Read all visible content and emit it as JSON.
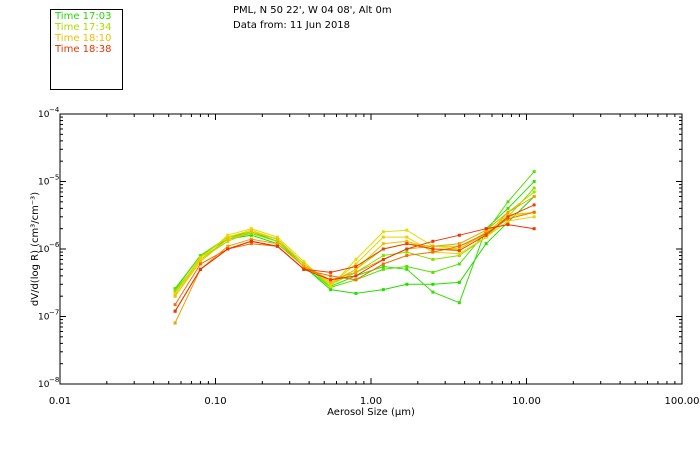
{
  "header": {
    "location": "PML, N 50 22', W 04 08', Alt 0m",
    "date": "Data from: 11 Jun 2018"
  },
  "legend": [
    {
      "label": "Time 17:03",
      "color": "#22dd00"
    },
    {
      "label": "Time 17:34",
      "color": "#aadd00"
    },
    {
      "label": "Time 18:10",
      "color": "#f0c000"
    },
    {
      "label": "Time 18:38",
      "color": "#ee3300"
    }
  ],
  "chart_data": {
    "type": "line",
    "title": "",
    "xlabel": "Aerosol Size (µm)",
    "ylabel": "dV/d(log R) (cm³/cm⁻³)",
    "xscale": "log",
    "yscale": "log",
    "xlim": [
      0.01,
      100
    ],
    "ylim": [
      1e-08,
      0.0001
    ],
    "x_ticks": [
      {
        "v": 0.01,
        "label": "0.01"
      },
      {
        "v": 0.1,
        "label": "0.10"
      },
      {
        "v": 1,
        "label": "1.00"
      },
      {
        "v": 10,
        "label": "10.00"
      },
      {
        "v": 100,
        "label": "100.00"
      }
    ],
    "y_ticks": [
      {
        "v": 1e-08,
        "mant": "10",
        "exp": "−8"
      },
      {
        "v": 1e-07,
        "mant": "10",
        "exp": "−7"
      },
      {
        "v": 1e-06,
        "mant": "10",
        "exp": "−6"
      },
      {
        "v": 1e-05,
        "mant": "10",
        "exp": "−5"
      },
      {
        "v": 0.0001,
        "mant": "10",
        "exp": "−4"
      }
    ],
    "x": [
      0.055,
      0.08,
      0.12,
      0.17,
      0.25,
      0.37,
      0.55,
      0.8,
      1.2,
      1.7,
      2.5,
      3.7,
      5.5,
      7.6,
      11.2
    ],
    "series": [
      {
        "name": "s1",
        "color": "#22dd00",
        "values": [
          2.5e-07,
          8e-07,
          1.4e-06,
          1.6e-06,
          1.2e-06,
          5.5e-07,
          2.5e-07,
          2.2e-07,
          2.5e-07,
          3e-07,
          3e-07,
          3.2e-07,
          1.2e-06,
          2.5e-06,
          6e-06
        ]
      },
      {
        "name": "s2",
        "color": "#33e000",
        "values": [
          2.2e-07,
          7.5e-07,
          1.5e-06,
          1.8e-06,
          1.3e-06,
          6e-07,
          2.8e-07,
          4e-07,
          5.5e-07,
          5e-07,
          2.3e-07,
          1.6e-07,
          2e-06,
          4e-06,
          1e-05
        ]
      },
      {
        "name": "s3",
        "color": "#55e000",
        "values": [
          2.6e-07,
          8e-07,
          1.5e-06,
          1.7e-06,
          1.3e-06,
          5.5e-07,
          2.7e-07,
          3.5e-07,
          5e-07,
          5.5e-07,
          4.5e-07,
          6e-07,
          1.8e-06,
          5e-06,
          1.4e-05
        ]
      },
      {
        "name": "s4",
        "color": "#88e000",
        "values": [
          2.4e-07,
          7e-07,
          1.4e-06,
          1.7e-06,
          1.3e-06,
          6e-07,
          3e-07,
          4.5e-07,
          8e-07,
          9e-07,
          7e-07,
          8e-07,
          1.5e-06,
          3e-06,
          8e-06
        ]
      },
      {
        "name": "s5",
        "color": "#aadd00",
        "values": [
          2.2e-07,
          7e-07,
          1.3e-06,
          1.8e-06,
          1.4e-06,
          6e-07,
          3e-07,
          5e-07,
          1e-06,
          1.2e-06,
          1.1e-06,
          1.1e-06,
          1.6e-06,
          3.5e-06,
          7e-06
        ]
      },
      {
        "name": "s6",
        "color": "#dde000",
        "values": [
          2e-07,
          7e-07,
          1.6e-06,
          2e-06,
          1.5e-06,
          6.5e-07,
          2.8e-07,
          7e-07,
          1.8e-06,
          1.9e-06,
          1.1e-06,
          1e-06,
          1.8e-06,
          3e-06,
          3.5e-06
        ]
      },
      {
        "name": "s7",
        "color": "#f0d000",
        "values": [
          2.2e-07,
          7.5e-07,
          1.5e-06,
          1.9e-06,
          1.4e-06,
          6e-07,
          3e-07,
          6e-07,
          1.5e-06,
          1.5e-06,
          9e-07,
          8.5e-07,
          1.5e-06,
          2.6e-06,
          3e-06
        ]
      },
      {
        "name": "s8",
        "color": "#f0c000",
        "values": [
          2e-07,
          6.5e-07,
          1.4e-06,
          1.8e-06,
          1.4e-06,
          6e-07,
          3.2e-07,
          5e-07,
          1.2e-06,
          1.3e-06,
          1e-06,
          1e-06,
          1.7e-06,
          3.2e-06,
          3.5e-06
        ]
      },
      {
        "name": "s9",
        "color": "#f0a000",
        "values": [
          8e-08,
          5e-07,
          1.1e-06,
          1.4e-06,
          1.2e-06,
          5.5e-07,
          3.5e-07,
          4.5e-07,
          7e-07,
          1e-06,
          1.1e-06,
          1.2e-06,
          1.9e-06,
          3.5e-06,
          6e-06
        ]
      },
      {
        "name": "s10",
        "color": "#f07000",
        "values": [
          1.5e-07,
          6e-07,
          1e-06,
          1.2e-06,
          1.1e-06,
          5e-07,
          4e-07,
          3.5e-07,
          6e-07,
          8e-07,
          9e-07,
          1.1e-06,
          1.7e-06,
          2.8e-06,
          3.5e-06
        ]
      },
      {
        "name": "s11",
        "color": "#ee4000",
        "values": [
          1.2e-07,
          5e-07,
          1e-06,
          1.3e-06,
          1.1e-06,
          5e-07,
          4.5e-07,
          5.5e-07,
          1e-06,
          1.2e-06,
          1e-06,
          9.5e-07,
          1.6e-06,
          3e-06,
          4.5e-06
        ]
      },
      {
        "name": "s12",
        "color": "#ee3300",
        "values": [
          1.2e-07,
          5e-07,
          1e-06,
          1.3e-06,
          1.1e-06,
          5e-07,
          3.5e-07,
          4e-07,
          7e-07,
          1e-06,
          1.3e-06,
          1.6e-06,
          2e-06,
          2.3e-06,
          2e-06
        ]
      }
    ]
  }
}
